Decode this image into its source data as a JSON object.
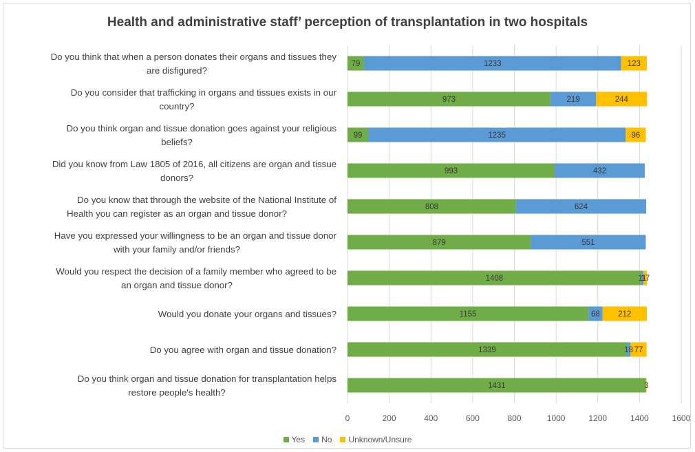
{
  "chart_data": {
    "type": "bar",
    "orientation": "horizontal",
    "stacked": true,
    "title": "Health and administrative staff’ perception of transplantation in two hospitals",
    "categories": [
      [
        "Do you think that when a person donates their organs and tissues they",
        "are disfigured?"
      ],
      [
        "Do you consider that trafficking in organs and tissues exists in our",
        "country?"
      ],
      [
        "Do you think organ and tissue donation goes against your religious",
        "beliefs?"
      ],
      [
        "Did you know from Law 1805 of 2016, all citizens are organ and tissue",
        "donors?"
      ],
      [
        "Do you know that through the website of the National Institute of",
        "Health you can register as an organ and tissue donor?"
      ],
      [
        "Have you expressed your willingness to be an organ and tissue donor",
        "with your family and/or friends?"
      ],
      [
        "Would you respect the decision of a family member who agreed to be",
        "an organ and tissue donor?"
      ],
      [
        "Would you donate your organs and tissues?"
      ],
      [
        "Do you agree with organ and tissue donation?"
      ],
      [
        "Do you think organ and tissue donation for transplantation helps",
        "restore people's health?"
      ]
    ],
    "series": [
      {
        "name": "Yes",
        "color": "#70ad47",
        "values": [
          79,
          973,
          99,
          993,
          808,
          879,
          1408,
          1155,
          1339,
          1431
        ]
      },
      {
        "name": "No",
        "color": "#5b9bd5",
        "values": [
          1233,
          219,
          1235,
          432,
          624,
          551,
          11,
          68,
          18,
          0
        ]
      },
      {
        "name": "Unknown/Unsure",
        "color": "#ffc000",
        "values": [
          123,
          244,
          96,
          0,
          0,
          0,
          17,
          212,
          77,
          3
        ]
      }
    ],
    "labels": [
      [
        "79",
        "1233",
        "123"
      ],
      [
        "973",
        "219",
        "244"
      ],
      [
        "99",
        "1235",
        "96"
      ],
      [
        "993",
        "432",
        ""
      ],
      [
        "808",
        "624",
        ""
      ],
      [
        "879",
        "551",
        ""
      ],
      [
        "1408",
        "11",
        "17"
      ],
      [
        "1155",
        "68",
        "212"
      ],
      [
        "1339",
        "18",
        "77"
      ],
      [
        "1431",
        "",
        "3"
      ]
    ],
    "xlim": [
      0,
      1600
    ],
    "xticks": [
      0,
      200,
      400,
      600,
      800,
      1000,
      1200,
      1400,
      1600
    ],
    "grid": true,
    "legend_position": "bottom"
  }
}
